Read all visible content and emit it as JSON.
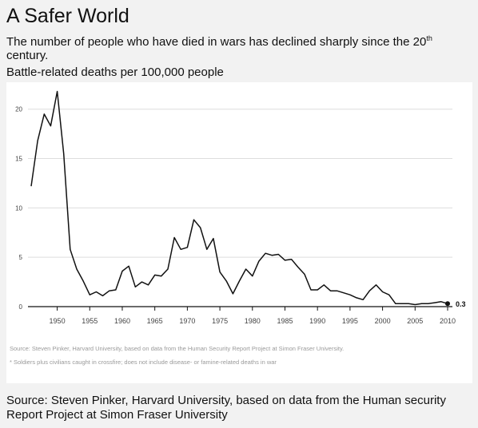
{
  "title": "A Safer World",
  "subtitle_pre": "The number of people who have died in wars has declined sharply since the 20",
  "subtitle_sup": "th",
  "subtitle_post": " century.",
  "ylabel": "Battle-related deaths per 100,000 people",
  "notes": {
    "source_small": "Source: Steven Pinker, Harvard University, based on data from the Human Security Report Project at Simon Fraser University.",
    "footnote": "* Soldiers plus civilians caught in crossfire; does not include disease- or famine-related deaths in war"
  },
  "source": "Source: Steven Pinker, Harvard University, based on data from the Human security Report Project at Simon Fraser University",
  "colors": {
    "line": "#111111",
    "grid": "#dddddd",
    "axis": "#111111",
    "tick_text": "#444444",
    "background": "#f2f2f2",
    "panel": "#ffffff"
  },
  "chart_data": {
    "type": "line",
    "title": "A Safer World",
    "ylabel": "Battle-related deaths per 100,000 people",
    "xlabel": "",
    "xlim": [
      1946,
      2010
    ],
    "ylim": [
      0,
      22
    ],
    "x_ticks": [
      1950,
      1955,
      1960,
      1965,
      1970,
      1975,
      1980,
      1985,
      1990,
      1995,
      2000,
      2005,
      2010
    ],
    "y_ticks": [
      0,
      5,
      10,
      15,
      20
    ],
    "grid": true,
    "end_label": "0.3",
    "series": [
      {
        "x": [
          1946,
          1947,
          1948,
          1949,
          1950,
          1951,
          1952,
          1953,
          1954,
          1955,
          1956,
          1957,
          1958,
          1959,
          1960,
          1961,
          1962,
          1963,
          1964,
          1965,
          1966,
          1967,
          1968,
          1969,
          1970,
          1971,
          1972,
          1973,
          1974,
          1975,
          1976,
          1977,
          1978,
          1979,
          1980,
          1981,
          1982,
          1983,
          1984,
          1985,
          1986,
          1987,
          1988,
          1989,
          1990,
          1991,
          1992,
          1993,
          1994,
          1995,
          1996,
          1997,
          1998,
          1999,
          2000,
          2001,
          2002,
          2003,
          2004,
          2005,
          2006,
          2007,
          2008,
          2009,
          2010
        ],
        "y": [
          12.2,
          16.8,
          19.5,
          18.3,
          21.8,
          15.5,
          5.8,
          3.8,
          2.6,
          1.2,
          1.5,
          1.1,
          1.6,
          1.7,
          3.6,
          4.1,
          2.0,
          2.5,
          2.2,
          3.2,
          3.1,
          3.8,
          7.0,
          5.8,
          6.0,
          8.8,
          8.0,
          5.8,
          6.9,
          3.5,
          2.6,
          1.3,
          2.6,
          3.8,
          3.1,
          4.6,
          5.4,
          5.2,
          5.3,
          4.7,
          4.8,
          4.0,
          3.3,
          1.7,
          1.7,
          2.2,
          1.6,
          1.6,
          1.4,
          1.2,
          0.9,
          0.7,
          1.6,
          2.2,
          1.5,
          1.2,
          0.3,
          0.3,
          0.3,
          0.2,
          0.3,
          0.3,
          0.4,
          0.5,
          0.3
        ]
      }
    ]
  }
}
